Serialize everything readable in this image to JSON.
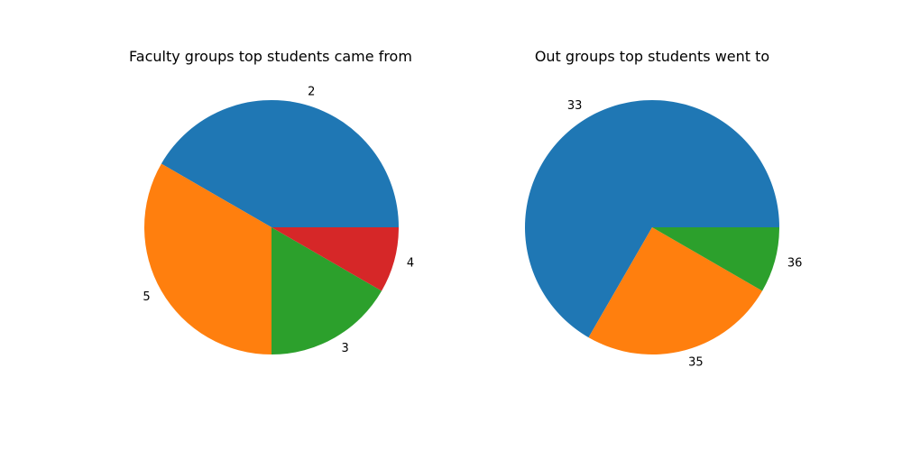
{
  "chart_data": [
    {
      "type": "pie",
      "title": "Faculty groups top students came from",
      "labels": [
        "2",
        "5",
        "3",
        "4"
      ],
      "values": [
        5,
        4,
        2,
        1
      ],
      "colors": [
        "#1f77b4",
        "#ff7f0e",
        "#2ca02c",
        "#d62728"
      ],
      "start_angle": 0,
      "direction": "counterclockwise"
    },
    {
      "type": "pie",
      "title": "Out groups top students went to",
      "labels": [
        "33",
        "35",
        "36"
      ],
      "values": [
        8,
        3,
        1
      ],
      "colors": [
        "#1f77b4",
        "#ff7f0e",
        "#2ca02c"
      ],
      "start_angle": 0,
      "direction": "counterclockwise"
    }
  ]
}
